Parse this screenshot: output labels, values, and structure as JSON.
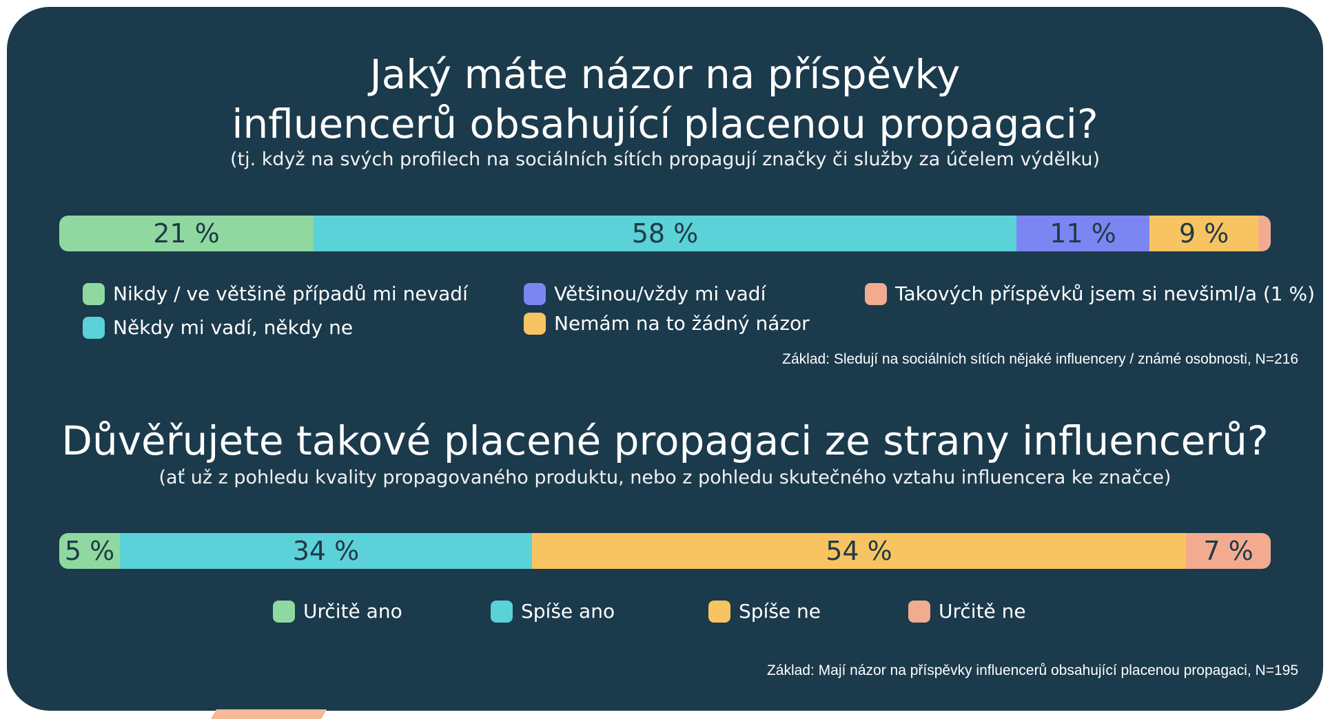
{
  "chart_data": [
    {
      "type": "bar",
      "title": "Jaký máte názor na příspěvky influencerů obsahující placenou propagaci?",
      "title_lines": [
        "Jaký máte názor na příspěvky",
        "influencerů obsahující placenou propagaci?"
      ],
      "subtitle": "(tj. když na svých profilech na sociálních sítích propagují značky či služby za účelem výdělku)",
      "series": [
        {
          "name": "Nikdy / ve většině případů mi nevadí",
          "value": 21,
          "label": "21 %",
          "color": "#8fd9a0"
        },
        {
          "name": "Někdy mi vadí, někdy ne",
          "value": 58,
          "label": "58 %",
          "color": "#5bd1d8"
        },
        {
          "name": "Většinou/vždy mi vadí",
          "value": 11,
          "label": "11 %",
          "color": "#7b86f3"
        },
        {
          "name": "Nemám na to žádný názor",
          "value": 9,
          "label": "9 %",
          "color": "#f8c462"
        },
        {
          "name": "Takových příspěvků jsem si nevšiml/a (1 %)",
          "value": 1,
          "label": "",
          "color": "#f2ab8f"
        }
      ],
      "xlim": [
        0,
        100
      ],
      "base_note": "Základ: Sledují na sociálních sítích nějaké influencery / známé osobnosti, N=216"
    },
    {
      "type": "bar",
      "title": "Důvěřujete takové placené propagaci ze strany influencerů?",
      "subtitle": "(ať už z pohledu kvality propagovaného produktu, nebo z pohledu skutečného vztahu influencera ke značce)",
      "series": [
        {
          "name": "Určitě ano",
          "value": 5,
          "label": "5 %",
          "color": "#8fd9a0"
        },
        {
          "name": "Spíše ano",
          "value": 34,
          "label": "34 %",
          "color": "#5bd1d8"
        },
        {
          "name": "Spíše ne",
          "value": 54,
          "label": "54 %",
          "color": "#f8c462"
        },
        {
          "name": "Určitě ne",
          "value": 7,
          "label": "7 %",
          "color": "#f2ab8f"
        }
      ],
      "xlim": [
        0,
        100
      ],
      "base_note": "Základ: Mají názor na příspěvky influencerů obsahující placenou propagaci, N=195"
    }
  ]
}
